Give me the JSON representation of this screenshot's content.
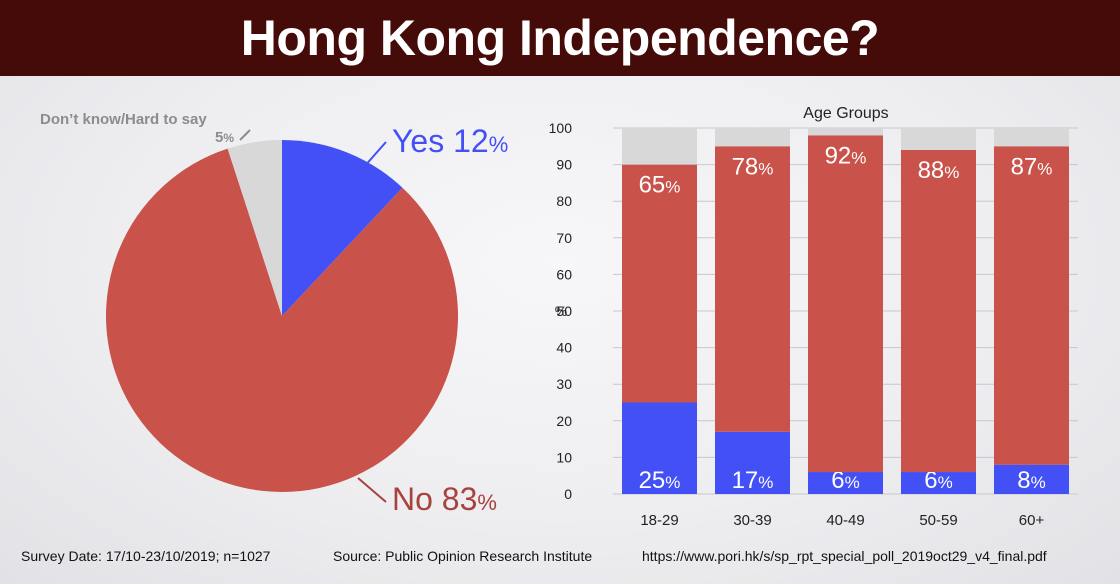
{
  "header": {
    "title": "Hong Kong Independence?"
  },
  "chart_data": [
    {
      "type": "pie",
      "slices": [
        {
          "name": "Yes",
          "value": 12,
          "label_name": "Yes",
          "label_value": "12",
          "color": "#4350f5",
          "label_color": "#4350f5"
        },
        {
          "name": "No",
          "value": 83,
          "label_name": "No",
          "label_value": "83",
          "color": "#c9524a",
          "label_color": "#a8423c"
        },
        {
          "name": "Don’t know/Hard to say",
          "value": 5,
          "label_name": "Don’t know/Hard to say",
          "label_value": "5",
          "color": "#d8d8d8",
          "label_color": "#8c8c8c"
        }
      ],
      "unit": "%"
    },
    {
      "type": "bar",
      "stacked": true,
      "title": "Age Groups",
      "ylabel": "%",
      "ylim": [
        0,
        100
      ],
      "yticks": [
        0,
        10,
        20,
        30,
        40,
        50,
        60,
        70,
        80,
        90,
        100
      ],
      "categories": [
        "18-29",
        "30-39",
        "40-49",
        "50-59",
        "60+"
      ],
      "series": [
        {
          "key": "yes",
          "values": [
            25,
            17,
            6,
            6,
            8
          ],
          "color": "#4350f5"
        },
        {
          "key": "no",
          "values": [
            65,
            78,
            92,
            88,
            87
          ],
          "color": "#c9524a"
        },
        {
          "key": "dk",
          "values": [
            10,
            5,
            2,
            6,
            5
          ],
          "color": "#d8d8d8"
        }
      ],
      "labeled_series": [
        "yes",
        "no"
      ],
      "label_unit": "%"
    }
  ],
  "footer": {
    "survey": "Survey Date: 17/10-23/10/2019; n=1027",
    "source": "Source: Public Opinion Research Institute",
    "url": "https://www.pori.hk/s/sp_rpt_special_poll_2019oct29_v4_final.pdf"
  }
}
